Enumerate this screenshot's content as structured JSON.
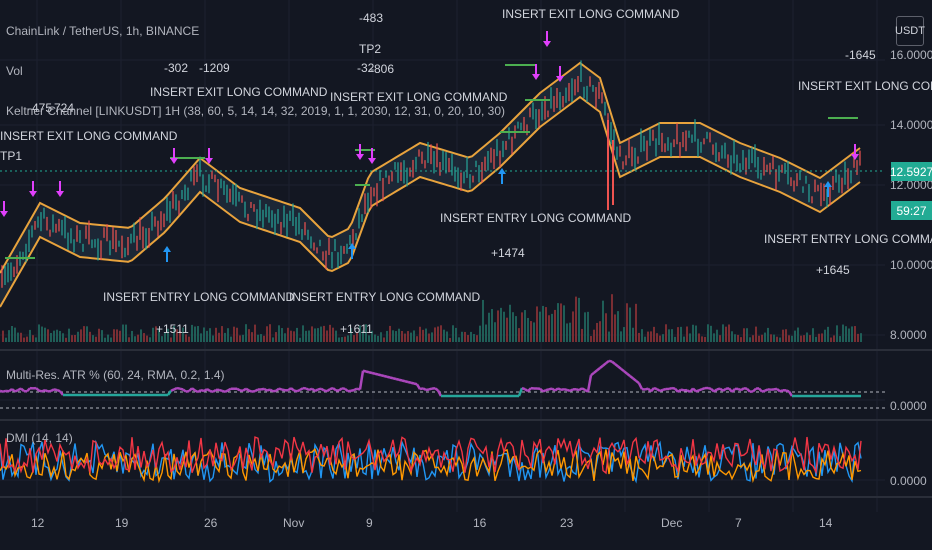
{
  "header": {
    "title": "ChainLink / TetherUS, 1h, BINANCE",
    "vol_label": "Vol",
    "keltner_label": "Keltner Channel [LINKUSDT] 1H (38, 60, 5, 14, 14, 32, 2019, 1, 1, 2030, 12, 31, 0, 20, 10, 30)",
    "atr_label": "Multi-Res. ATR % (60, 24, RMA, 0.2, 1.4)",
    "dmi_label": "DMI (14, 14)"
  },
  "currency": "USDT",
  "price_axis": {
    "ticks": [
      "16.0000",
      "14.0000",
      "12.0000",
      "10.0000",
      "8.0000"
    ],
    "last_price": "12.5927",
    "countdown": "59:27",
    "atr_zero": "0.0000",
    "dmi_zero": "0.0000"
  },
  "time_axis": [
    "12",
    "19",
    "26",
    "Nov",
    "9",
    "16",
    "23",
    "Dec",
    "7",
    "14"
  ],
  "annotations": {
    "exit": [
      "INSERT EXIT LONG COMMAND",
      "INSERT EXIT LONG COMMAND",
      "INSERT EXIT LONG COMMAND",
      "INSERT EXIT LONG COMMAND",
      "INSERT EXIT LONG COMMAND"
    ],
    "entry": [
      "INSERT ENTRY LONG COMMAND",
      "INSERT ENTRY LONG COMMAND",
      "INSERT ENTRY LONG COMMAND",
      "INSERT ENTRY LONG COMMAND"
    ],
    "tp1": "TP1",
    "tp2": "TP2",
    "profits": [
      "+1511",
      "+1611",
      "+1474",
      "+1645"
    ],
    "losses": [
      "-302",
      "-1209",
      "-483",
      "-32",
      "-806",
      "-1645",
      "-475",
      "-724"
    ]
  },
  "colors": {
    "background": "#131722",
    "channel_band": "#e8a33d",
    "channel_fill": "#1e2a3a",
    "exit_marker": "#e040fb",
    "entry_marker": "#2196f3",
    "tp_line": "#4caf50",
    "atr_line": "#ab47bc",
    "atr_line_low": "#26a69a",
    "dmi_plus": "#2196f3",
    "dmi_minus": "#ff9800",
    "dmi_adx": "#f23645",
    "last_price_bg": "#22ab94"
  }
}
